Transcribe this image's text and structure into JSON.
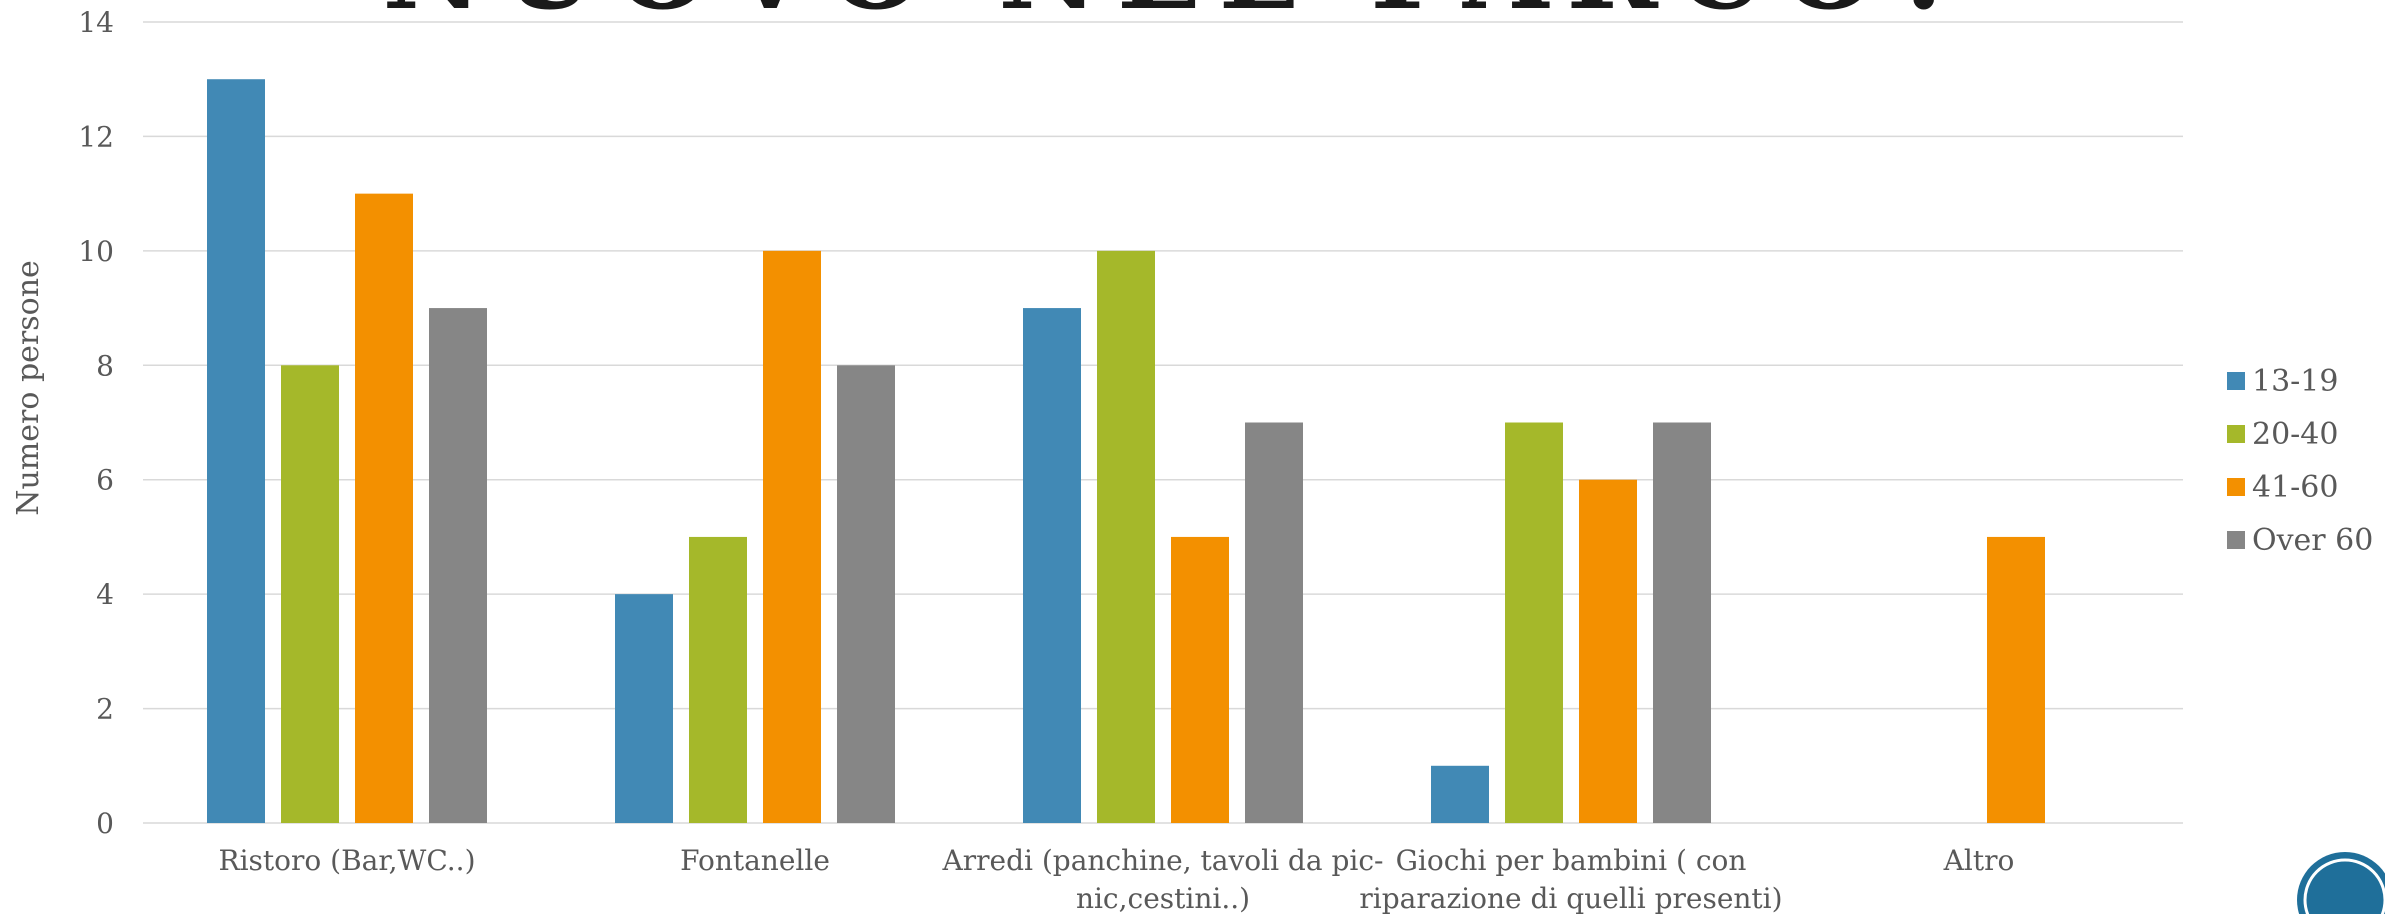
{
  "slide_title": "NUOVO NEL PARCO?",
  "chart_data": {
    "type": "bar",
    "ylabel": "Numero persone",
    "xlabel": "",
    "ylim": [
      0,
      14
    ],
    "yticks": [
      0,
      2,
      4,
      6,
      8,
      10,
      12,
      14
    ],
    "grid": true,
    "legend_position": "right",
    "categories": [
      [
        "Ristoro (Bar,WC..)"
      ],
      [
        "Fontanelle"
      ],
      [
        "Arredi (panchine, tavoli da pic-",
        "nic,cestini..)"
      ],
      [
        "Giochi per bambini ( con",
        "riparazione di quelli presenti)"
      ],
      [
        "Altro"
      ]
    ],
    "series": [
      {
        "name": "13-19",
        "color": "#4189B5",
        "values": [
          13,
          4,
          9,
          1,
          0
        ]
      },
      {
        "name": "20-40",
        "color": "#A5B82A",
        "values": [
          8,
          5,
          10,
          7,
          0
        ]
      },
      {
        "name": "41-60",
        "color": "#F39000",
        "values": [
          11,
          10,
          5,
          6,
          5
        ]
      },
      {
        "name": "Over 60",
        "color": "#868686",
        "values": [
          9,
          8,
          7,
          7,
          0
        ]
      }
    ]
  },
  "decorations": {
    "corner_badge_icon": "circle-logo-icon",
    "badge_color": "#1F6F9A"
  }
}
